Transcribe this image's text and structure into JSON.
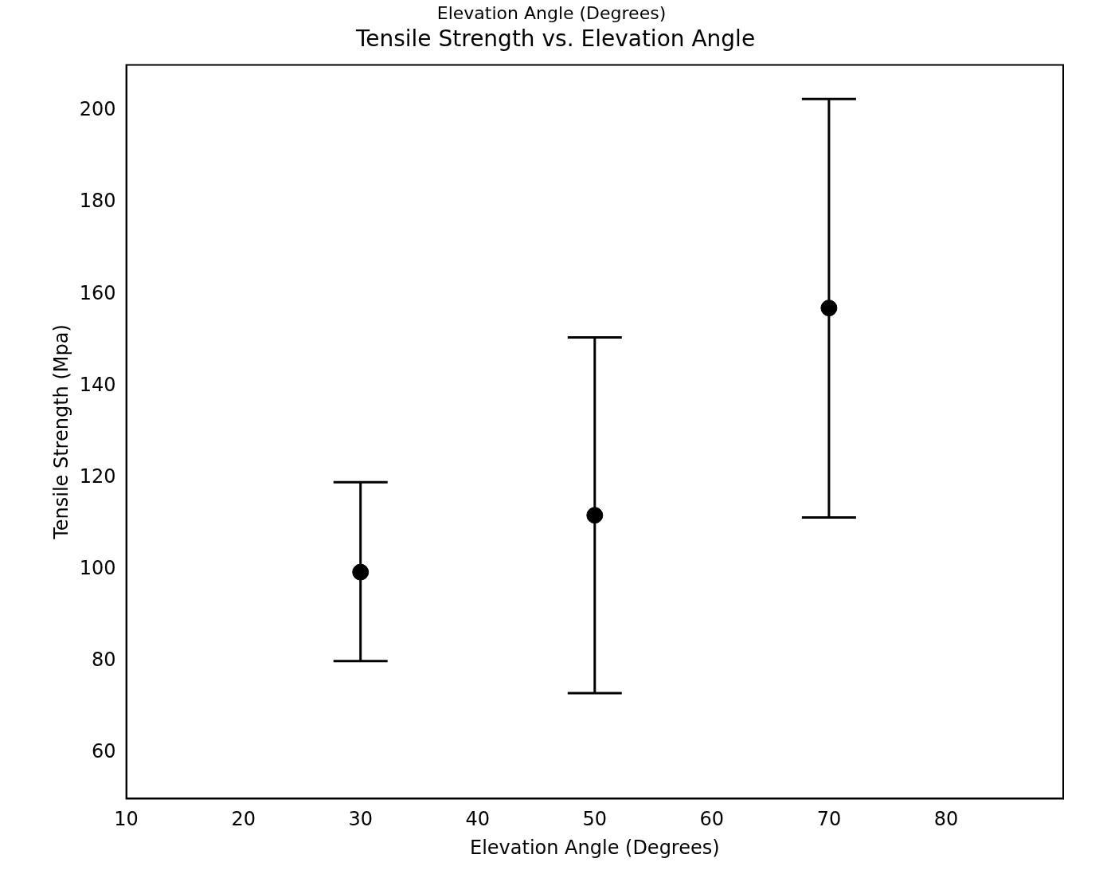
{
  "chart_data": {
    "type": "scatter",
    "title": "Tensile Strength vs. Elevation Angle",
    "xlabel": "Elevation Angle (Degrees)",
    "ylabel": "Tensile Strength (Mpa)",
    "annotations": [
      "Elevation Angle (Degrees)"
    ],
    "x": [
      30,
      50,
      70
    ],
    "values": [
      99.4,
      111.8,
      157
    ],
    "color": "#000000",
    "errors": [
      [
        80,
        119
      ],
      [
        73,
        150.6
      ],
      [
        111.3,
        202.6
      ]
    ],
    "xlim": [
      10,
      90
    ],
    "xticks": [
      10,
      20,
      30,
      40,
      50,
      60,
      70,
      80
    ],
    "ylim": [
      50,
      210
    ],
    "yticks": [
      60,
      80,
      100,
      120,
      140,
      160,
      180,
      200
    ],
    "marker": "circle",
    "grid": false,
    "legend": false
  }
}
